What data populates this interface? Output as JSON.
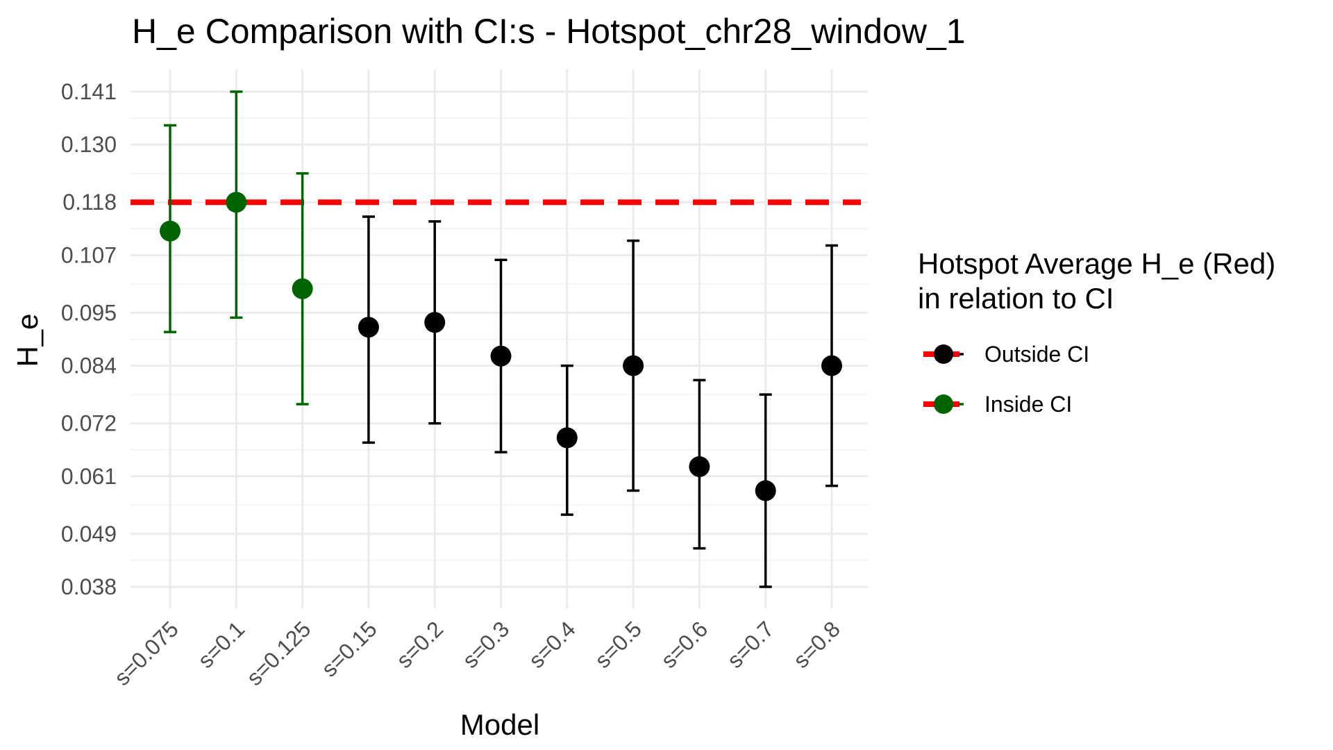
{
  "chart_data": {
    "type": "scatter",
    "title": "H_e Comparison with CI:s -  Hotspot_chr28_window_1",
    "xlabel": "Model",
    "ylabel": "H_e",
    "categories": [
      "s=0.075",
      "s=0.1",
      "s=0.125",
      "s=0.15",
      "s=0.2",
      "s=0.3",
      "s=0.4",
      "s=0.5",
      "s=0.6",
      "s=0.7",
      "s=0.8"
    ],
    "values": [
      0.112,
      0.118,
      0.1,
      0.092,
      0.093,
      0.086,
      0.069,
      0.084,
      0.063,
      0.058,
      0.084
    ],
    "ci_lower": [
      0.091,
      0.094,
      0.076,
      0.068,
      0.072,
      0.066,
      0.053,
      0.058,
      0.046,
      0.038,
      0.059
    ],
    "ci_upper": [
      0.134,
      0.141,
      0.124,
      0.115,
      0.114,
      0.106,
      0.084,
      0.11,
      0.081,
      0.078,
      0.109
    ],
    "status": [
      "Inside CI",
      "Inside CI",
      "Inside CI",
      "Outside CI",
      "Outside CI",
      "Outside CI",
      "Outside CI",
      "Outside CI",
      "Outside CI",
      "Outside CI",
      "Outside CI"
    ],
    "reference_line": {
      "value": 0.118,
      "color": "#ff0000",
      "style": "dashed"
    },
    "y_ticks": [
      "0.038",
      "0.049",
      "0.061",
      "0.072",
      "0.084",
      "0.095",
      "0.107",
      "0.118",
      "0.130",
      "0.141"
    ],
    "ylim": [
      0.033,
      0.146
    ],
    "grid": true,
    "colors": {
      "Outside CI": "#000000",
      "Inside CI": "#006400",
      "reference": "#ff0000"
    },
    "legend": {
      "title_line1": "Hotspot Average H_e (Red)",
      "title_line2": "in relation to CI",
      "placement": "right",
      "entries": [
        "Outside CI",
        "Inside CI"
      ]
    }
  }
}
